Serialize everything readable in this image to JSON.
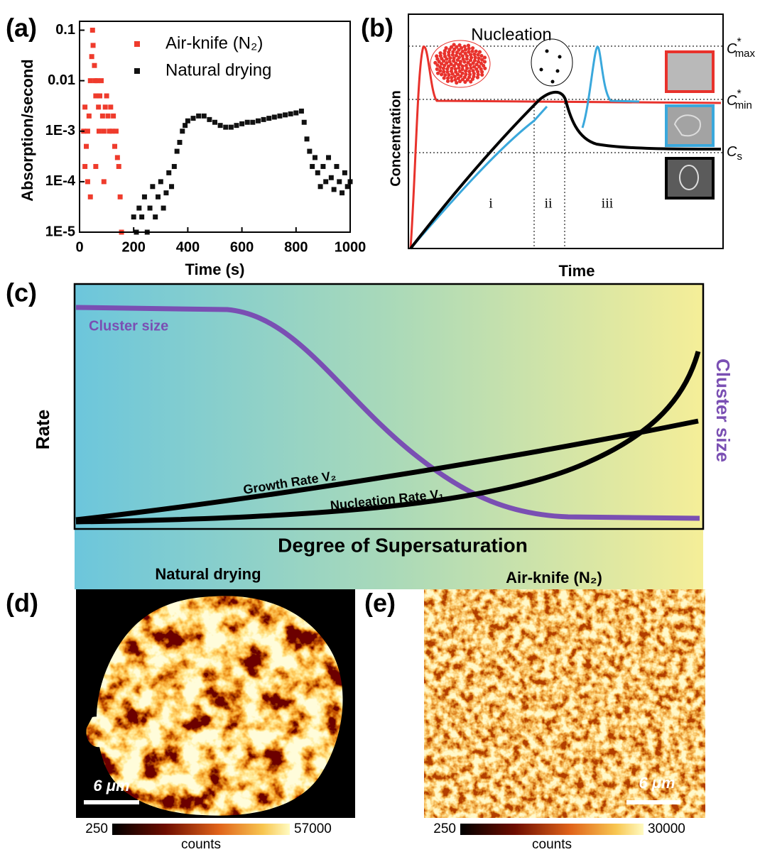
{
  "figure": {
    "panel_labels": [
      "(a)",
      "(b)",
      "(c)",
      "(d)",
      "(e)"
    ]
  },
  "chart_data": [
    {
      "type": "scatter",
      "xlabel": "Time (s)",
      "ylabel": "Absorption/second",
      "xlim": [
        0,
        1000
      ],
      "xticks": [
        0,
        200,
        400,
        600,
        800,
        1000
      ],
      "ylim": [
        1e-05,
        0.15
      ],
      "yscale": "log",
      "yticks": [
        0.1,
        0.01,
        {
          "value": 0.001,
          "label": "1E-3"
        },
        {
          "value": 0.0001,
          "label": "1E-4"
        },
        {
          "value": 1e-05,
          "label": "1E-5"
        }
      ],
      "legend": "top-left",
      "series": [
        {
          "name": "Air-knife (N₂)",
          "color": "#ef3b2c",
          "x": [
            15,
            20,
            25,
            30,
            35,
            40,
            45,
            48,
            50,
            55,
            58,
            60,
            65,
            70,
            72,
            75,
            80,
            85,
            90,
            95,
            100,
            105,
            110,
            115,
            120,
            125,
            130,
            135,
            140,
            145,
            150,
            155,
            20,
            30,
            40,
            60,
            90
          ],
          "values": [
            0.001,
            0.003,
            0.0005,
            0.001,
            0.002,
            0.01,
            0.03,
            0.1,
            0.05,
            0.02,
            0.01,
            0.005,
            0.01,
            0.003,
            0.001,
            0.005,
            0.01,
            0.002,
            0.001,
            0.003,
            0.005,
            0.002,
            0.001,
            0.003,
            0.001,
            0.002,
            0.0005,
            0.001,
            0.0003,
            0.0002,
            5e-05,
            1e-05,
            0.0002,
            0.0001,
            5e-05,
            0.0002,
            0.0001
          ]
        },
        {
          "name": "Natural drying",
          "color": "#111111",
          "x": [
            200,
            210,
            220,
            230,
            240,
            250,
            260,
            270,
            280,
            290,
            300,
            310,
            320,
            330,
            340,
            350,
            360,
            370,
            380,
            390,
            400,
            420,
            440,
            460,
            480,
            500,
            520,
            540,
            560,
            580,
            600,
            620,
            640,
            660,
            680,
            700,
            720,
            740,
            760,
            780,
            800,
            820,
            830,
            840,
            850,
            860,
            870,
            880,
            890,
            900,
            910,
            920,
            930,
            940,
            950,
            960,
            970,
            980,
            990,
            1000
          ],
          "values": [
            2e-05,
            1e-05,
            3e-05,
            2e-05,
            5e-05,
            1e-05,
            3e-05,
            8e-05,
            2e-05,
            5e-05,
            0.0001,
            3e-05,
            6e-05,
            0.00015,
            8e-05,
            0.0002,
            0.0004,
            0.0006,
            0.001,
            0.0013,
            0.0016,
            0.0018,
            0.002,
            0.002,
            0.0017,
            0.0015,
            0.0013,
            0.0012,
            0.0012,
            0.0013,
            0.0014,
            0.0015,
            0.0015,
            0.0016,
            0.0017,
            0.0018,
            0.0019,
            0.002,
            0.0021,
            0.0022,
            0.0023,
            0.0025,
            0.0015,
            0.0007,
            0.0004,
            0.0002,
            0.0003,
            0.00015,
            8e-05,
            0.0002,
            0.0001,
            0.0003,
            0.00012,
            7e-05,
            0.0002,
            0.0001,
            6e-05,
            0.00015,
            8e-05,
            0.0001
          ]
        }
      ]
    }
  ],
  "panel_b": {
    "title": "Nucleation",
    "ylabel": "Concentration",
    "xlabel": "Time",
    "stages": [
      "i",
      "ii",
      "iii"
    ],
    "levels": [
      {
        "symbol": "C",
        "sup": "*",
        "sub": "max"
      },
      {
        "symbol": "C",
        "sup": "*",
        "sub": "min"
      },
      {
        "symbol": "C",
        "sub": "s"
      }
    ]
  },
  "panel_c": {
    "left_axis": "Rate",
    "right_axis": "Cluster size",
    "curve_label": "Cluster size",
    "growth": "Growth Rate V₂",
    "nucleation": "Nucleation Rate V₁",
    "xlabel": "Degree of Supersaturation",
    "left_end": "Natural drying",
    "right_end": "Air-knife (N₂)"
  },
  "panel_d": {
    "scale": "6 μm",
    "cbar_min": "250",
    "cbar_max": "57000",
    "cbar_label": "counts"
  },
  "panel_e": {
    "scale": "6 μm",
    "cbar_min": "250",
    "cbar_max": "30000",
    "cbar_label": "counts"
  }
}
